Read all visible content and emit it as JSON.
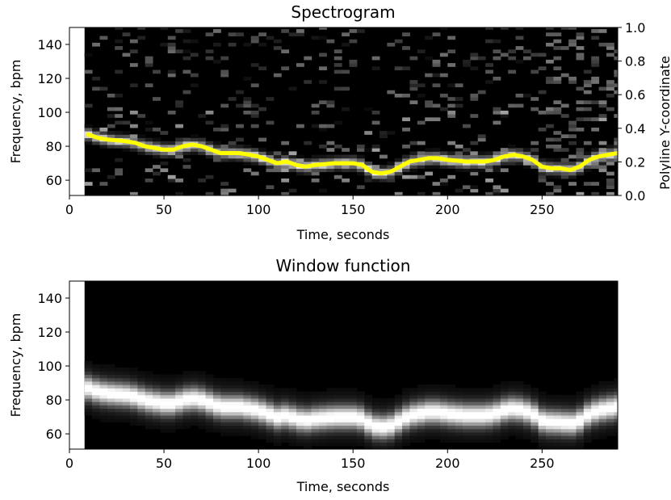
{
  "figure": {
    "background": "#ffffff",
    "heatmap_high_color": "#ffffff",
    "heatmap_low_color": "#000000",
    "ridge_color": "#ffff00"
  },
  "chart_data": [
    {
      "type": "heatmap",
      "title": "Spectrogram",
      "xlabel": "Time, seconds",
      "ylabel": "Frequency, bpm",
      "secondary_ylabel": "Polyline Y-coordinate",
      "xlim": [
        0,
        290
      ],
      "ylim": [
        51,
        150
      ],
      "data_x_start": 8,
      "secondary_ylim": [
        0.0,
        1.0
      ],
      "xticks": [
        0,
        50,
        100,
        150,
        200,
        250
      ],
      "yticks": [
        60,
        80,
        100,
        120,
        140
      ],
      "secondary_yticks": [
        "0.0",
        "0.2",
        "0.4",
        "0.6",
        "0.8",
        "1.0"
      ],
      "overlay_line": {
        "color": "#ffff00",
        "x": [
          10,
          15,
          20,
          30,
          35,
          40,
          45,
          50,
          55,
          60,
          65,
          70,
          75,
          80,
          85,
          90,
          95,
          100,
          105,
          110,
          115,
          120,
          125,
          130,
          140,
          150,
          155,
          160,
          165,
          170,
          175,
          180,
          185,
          190,
          195,
          200,
          210,
          220,
          225,
          230,
          235,
          240,
          245,
          250,
          255,
          260,
          265,
          270,
          275,
          280,
          285,
          290
        ],
        "y": [
          87,
          85,
          84,
          83,
          82,
          80,
          79,
          78,
          78,
          80,
          81,
          80,
          78,
          76,
          76,
          76,
          75,
          74,
          72,
          70,
          71,
          69,
          68,
          69,
          70,
          70,
          69,
          65,
          64,
          65,
          68,
          71,
          72,
          73,
          73,
          72,
          71,
          71,
          72,
          74,
          75,
          74,
          72,
          68,
          67,
          67,
          66,
          68,
          72,
          74,
          75,
          76
        ]
      }
    },
    {
      "type": "heatmap",
      "title": "Window function",
      "xlabel": "Time, seconds",
      "ylabel": "Frequency, bpm",
      "xlim": [
        0,
        290
      ],
      "ylim": [
        51,
        150
      ],
      "data_x_start": 8,
      "xticks": [
        0,
        50,
        100,
        150,
        200,
        250
      ],
      "yticks": [
        60,
        80,
        100,
        120,
        140
      ]
    }
  ]
}
